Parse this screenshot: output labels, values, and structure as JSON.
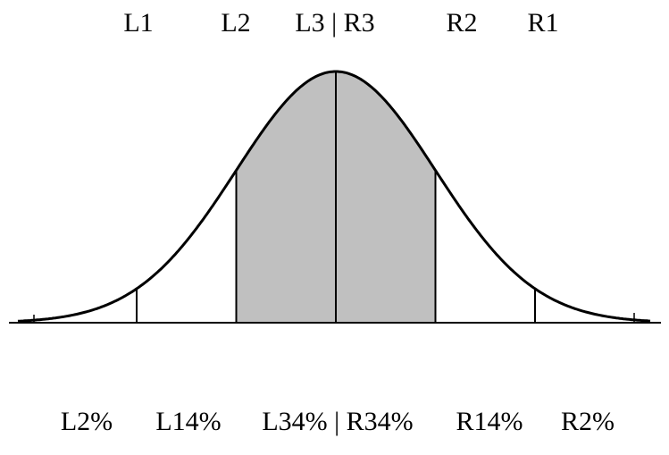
{
  "top_labels": {
    "l1": "L1",
    "l2": "L2",
    "center": "L3 | R3",
    "r2": "R2",
    "r1": "R1"
  },
  "bottom_labels": {
    "l2pct": "L2%",
    "l14pct": "L14%",
    "center": "L34% | R34%",
    "r14pct": "R14%",
    "r2pct": "R2%"
  },
  "colors": {
    "ink": "#000000",
    "shade": "#c0c0c0",
    "background": "#ffffff"
  }
}
